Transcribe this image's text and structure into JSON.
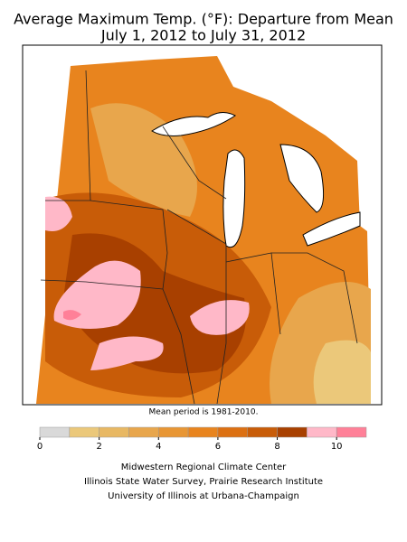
{
  "title": [
    "Average Maximum Temp. (°F): Departure from Mean",
    "July 1, 2012 to July 31, 2012"
  ],
  "map": {
    "note": "Mean period is 1981-2010."
  },
  "legend": {
    "bins": [
      0,
      1,
      2,
      3,
      4,
      5,
      6,
      7,
      8,
      9,
      10,
      11
    ],
    "colors": [
      "#d9d9d9",
      "#ebc87a",
      "#e8b863",
      "#e8a64c",
      "#e89634",
      "#e8841e",
      "#dc7012",
      "#c85c08",
      "#a84000",
      "#ffb8c8",
      "#ff8098"
    ],
    "ticks": [
      0,
      2,
      4,
      6,
      8,
      10
    ]
  },
  "credits": [
    "Midwestern Regional Climate Center",
    "Illinois State Water Survey, Prairie Research Institute",
    "University of Illinois at Urbana-Champaign"
  ]
}
